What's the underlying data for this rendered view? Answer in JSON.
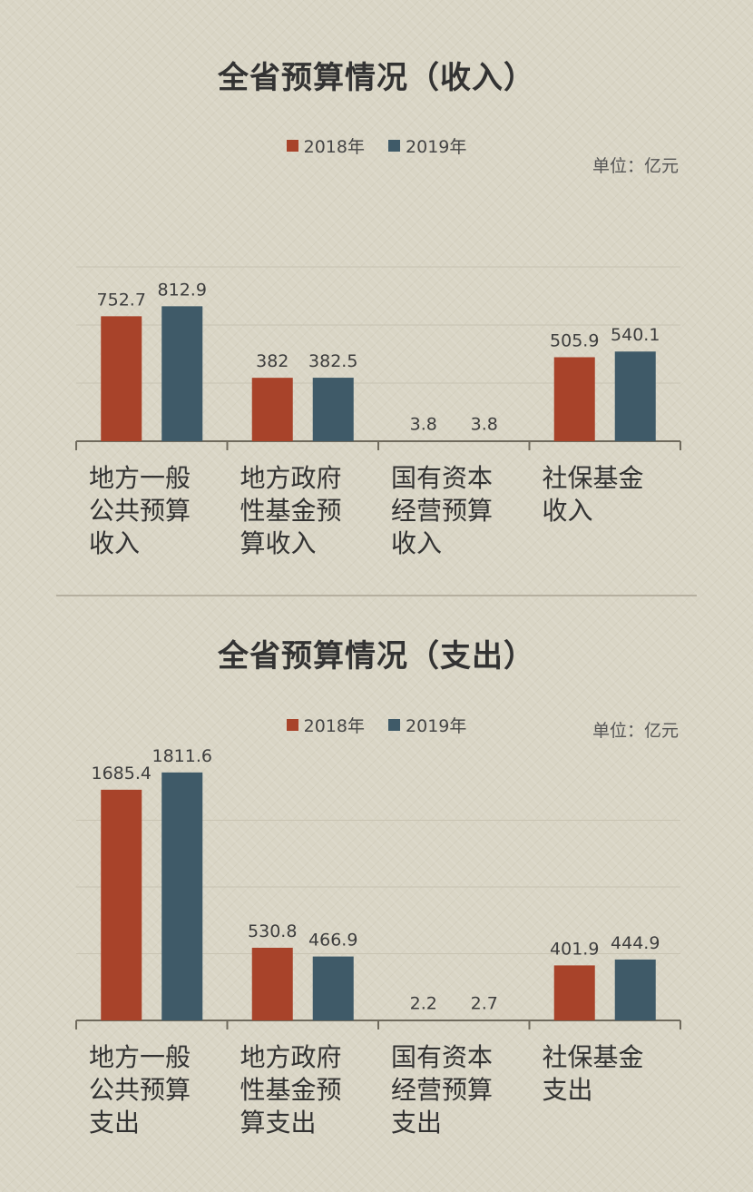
{
  "unit_label": "单位：亿元",
  "colors": {
    "y2018": "#a8432a",
    "y2019": "#3f5a68",
    "axis": "#6f6a5d",
    "grid": "#c8c3b2"
  },
  "chart_data": [
    {
      "type": "bar",
      "title": "全省预算情况（收入）",
      "categories": [
        "地方一般公共预算收入",
        "地方政府性基金预算收入",
        "国有资本经营预算收入",
        "社保基金收入"
      ],
      "category_lines": [
        [
          "地方一般",
          "公共预算",
          "收入"
        ],
        [
          "地方政府",
          "性基金预",
          "算收入"
        ],
        [
          "国有资本",
          "经营预算",
          "收入"
        ],
        [
          "社保基金",
          "收入"
        ]
      ],
      "series": [
        {
          "name": "2018年",
          "values": [
            752.7,
            382,
            3.8,
            505.9
          ],
          "labels": [
            "752.7",
            "382",
            "3.8",
            "505.9"
          ]
        },
        {
          "name": "2019年",
          "values": [
            812.9,
            382.5,
            3.8,
            540.1
          ],
          "labels": [
            "812.9",
            "382.5",
            "3.8",
            "540.1"
          ]
        }
      ],
      "ylim": [
        0,
        1400
      ],
      "grid": true,
      "legend_position": "top-center"
    },
    {
      "type": "bar",
      "title": "全省预算情况（支出）",
      "categories": [
        "地方一般公共预算支出",
        "地方政府性基金预算支出",
        "国有资本经营预算支出",
        "社保基金支出"
      ],
      "category_lines": [
        [
          "地方一般",
          "公共预算",
          "支出"
        ],
        [
          "地方政府",
          "性基金预",
          "算支出"
        ],
        [
          "国有资本",
          "经营预算",
          "支出"
        ],
        [
          "社保基金",
          "支出"
        ]
      ],
      "series": [
        {
          "name": "2018年",
          "values": [
            1685.4,
            530.8,
            2.2,
            401.9
          ],
          "labels": [
            "1685.4",
            "530.8",
            "2.2",
            "401.9"
          ]
        },
        {
          "name": "2019年",
          "values": [
            1811.6,
            466.9,
            2.7,
            444.9
          ],
          "labels": [
            "1811.6",
            "466.9",
            "2.7",
            "444.9"
          ]
        }
      ],
      "ylim": [
        0,
        1950
      ],
      "grid": true,
      "legend_position": "top-center"
    }
  ]
}
